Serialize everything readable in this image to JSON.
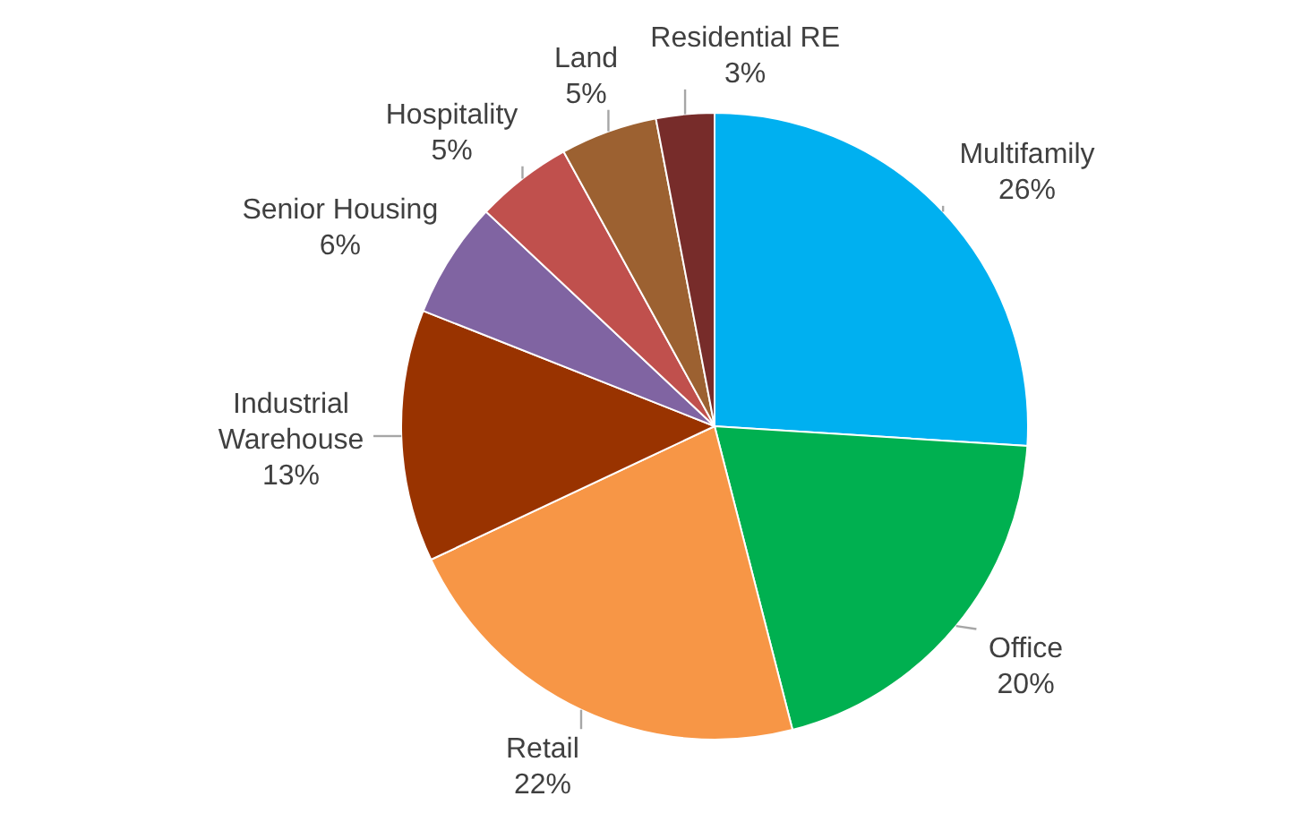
{
  "chart_data": {
    "type": "pie",
    "categories": [
      "Multifamily",
      "Office",
      "Retail",
      "Industrial Warehouse",
      "Senior Housing",
      "Hospitality",
      "Land",
      "Residential RE"
    ],
    "values": [
      26,
      20,
      22,
      13,
      6,
      5,
      5,
      3
    ],
    "colors": [
      "#00b0f0",
      "#00b050",
      "#f79646",
      "#993300",
      "#8064a2",
      "#c0504d",
      "#9c6131",
      "#772c2a"
    ],
    "value_labels": [
      "26%",
      "20%",
      "22%",
      "13%",
      "6%",
      "5%",
      "5%",
      "3%"
    ]
  }
}
